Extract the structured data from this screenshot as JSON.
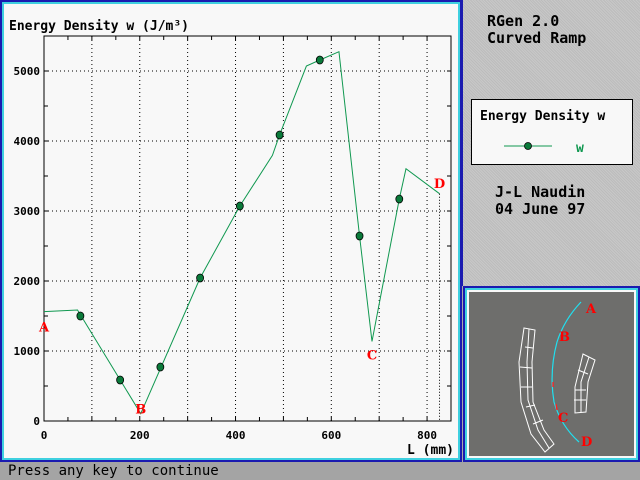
{
  "chart_data": {
    "type": "line",
    "title": "Energy Density w (J/m³)",
    "xlabel": "L (mm)",
    "ylabel": "Energy Density w (J/m³)",
    "xlim": [
      0,
      850
    ],
    "ylim": [
      0,
      5500
    ],
    "xticks": [
      "0",
      "200",
      "400",
      "600",
      "800"
    ],
    "xtick_values": [
      0,
      200,
      400,
      600,
      800
    ],
    "yticks": [
      "0",
      "1000",
      "2000",
      "3000",
      "4000",
      "5000"
    ],
    "ytick_values": [
      0,
      1000,
      2000,
      3000,
      4000,
      5000
    ],
    "grid": true,
    "series": [
      {
        "name": "w",
        "color": "#109850",
        "line": [
          [
            0,
            1562
          ],
          [
            70,
            1586
          ],
          [
            202,
            105
          ],
          [
            326,
            2043
          ],
          [
            409,
            3071
          ],
          [
            477,
            3794
          ],
          [
            492,
            4086
          ],
          [
            548,
            5071
          ],
          [
            576,
            5157
          ],
          [
            616,
            5276
          ],
          [
            659,
            2643
          ],
          [
            685,
            1137
          ],
          [
            742,
            3171
          ],
          [
            756,
            3604
          ],
          [
            826,
            3247
          ]
        ],
        "markers": [
          [
            76,
            1500
          ],
          [
            159,
            586
          ],
          [
            243,
            771
          ],
          [
            326,
            2043
          ],
          [
            409,
            3071
          ],
          [
            492,
            4086
          ],
          [
            576,
            5157
          ],
          [
            659,
            2643
          ],
          [
            742,
            3171
          ]
        ]
      }
    ],
    "annotations": [
      {
        "text": "A",
        "x": 0,
        "y": 1350
      },
      {
        "text": "B",
        "x": 202,
        "y": 180
      },
      {
        "text": "C",
        "x": 685,
        "y": 950
      },
      {
        "text": "D",
        "x": 826,
        "y": 3400
      }
    ],
    "legend": {
      "title": "Energy Density w",
      "entry": "w",
      "placement": "right"
    }
  },
  "side": {
    "line1": "RGen 2.0",
    "line2": "Curved Ramp",
    "author": "J-L Naudin",
    "date": "04 June 97"
  },
  "inset": {
    "labels": [
      "A",
      "B",
      "C",
      "D"
    ]
  },
  "status": "Press any key to continue",
  "colors": {
    "series": "#109850",
    "marker": "#0a7a3a",
    "annotation": "#ff0000",
    "frame": "#1b1bb0",
    "frame_inner": "#3fd0e0",
    "arc": "#20e0f0"
  }
}
